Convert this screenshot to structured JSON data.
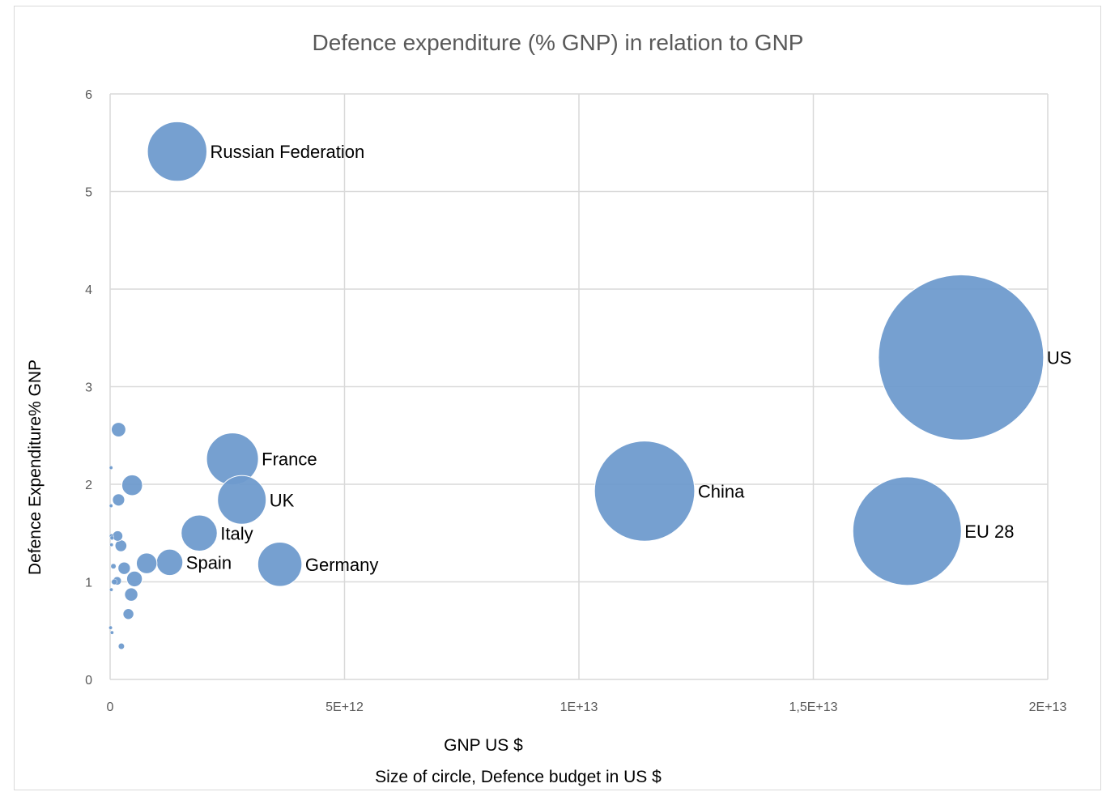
{
  "chart_data": {
    "type": "bubble",
    "title": "Defence expenditure (% GNP) in relation to GNP",
    "xlabel": "GNP US $",
    "xlabel2": "Size of circle, Defence budget in US $",
    "ylabel": "Defence Expenditure% GNP",
    "xlim": [
      0,
      20000000000000
    ],
    "ylim": [
      0,
      6
    ],
    "x_ticks": [
      0,
      5000000000000,
      10000000000000,
      15000000000000,
      20000000000000
    ],
    "x_tick_labels": [
      "0",
      "5E+12",
      "1E+13",
      "1,5E+13",
      "2E+13"
    ],
    "y_ticks": [
      0,
      1,
      2,
      3,
      4,
      5,
      6
    ],
    "y_tick_labels": [
      "0",
      "1",
      "2",
      "3",
      "4",
      "5",
      "6"
    ],
    "grid": true,
    "bubble_color": "#6f9bcd",
    "points": [
      {
        "label": "US",
        "x": 18150000000000,
        "y": 3.3,
        "size": 598000000000
      },
      {
        "label": "EU 28",
        "x": 17000000000000,
        "y": 1.52,
        "size": 258000000000
      },
      {
        "label": "China",
        "x": 11400000000000,
        "y": 1.93,
        "size": 220000000000
      },
      {
        "label": "Russian Federation",
        "x": 1430000000000,
        "y": 5.41,
        "size": 77400000000
      },
      {
        "label": "France",
        "x": 2610000000000,
        "y": 2.26,
        "size": 59000000000
      },
      {
        "label": "UK",
        "x": 2810000000000,
        "y": 1.84,
        "size": 51700000000
      },
      {
        "label": "Germany",
        "x": 3620000000000,
        "y": 1.18,
        "size": 42700000000
      },
      {
        "label": "Italy",
        "x": 1900000000000,
        "y": 1.5,
        "size": 28500000000
      },
      {
        "label": "Spain",
        "x": 1270000000000,
        "y": 1.2,
        "size": 15200000000
      },
      {
        "label": "",
        "x": 470000000000,
        "y": 1.99,
        "size": 9400000000
      },
      {
        "label": "",
        "x": 780000000000,
        "y": 1.19,
        "size": 9300000000
      },
      {
        "label": "",
        "x": 520000000000,
        "y": 1.03,
        "size": 5400000000
      },
      {
        "label": "",
        "x": 180000000000,
        "y": 2.56,
        "size": 4600000000
      },
      {
        "label": "",
        "x": 180000000000,
        "y": 1.84,
        "size": 3300000000
      },
      {
        "label": "",
        "x": 300000000000,
        "y": 1.14,
        "size": 3400000000
      },
      {
        "label": "",
        "x": 450000000000,
        "y": 0.87,
        "size": 3900000000
      },
      {
        "label": "",
        "x": 230000000000,
        "y": 1.37,
        "size": 3100000000
      },
      {
        "label": "",
        "x": 160000000000,
        "y": 1.47,
        "size": 2400000000
      },
      {
        "label": "",
        "x": 390000000000,
        "y": 0.67,
        "size": 2600000000
      },
      {
        "label": "",
        "x": 150000000000,
        "y": 1.01,
        "size": 1500000000
      },
      {
        "label": "",
        "x": 90000000000,
        "y": 1.0,
        "size": 700000000
      },
      {
        "label": "",
        "x": 70000000000,
        "y": 1.16,
        "size": 600000000
      },
      {
        "label": "",
        "x": 240000000000,
        "y": 0.34,
        "size": 800000000
      },
      {
        "label": "",
        "x": 30000000000,
        "y": 1.47,
        "size": 400000000
      },
      {
        "label": "",
        "x": 40000000000,
        "y": 1.45,
        "size": 350000000
      },
      {
        "label": "",
        "x": 20000000000,
        "y": 2.17,
        "size": 150000000
      },
      {
        "label": "",
        "x": 30000000000,
        "y": 1.38,
        "size": 200000000
      },
      {
        "label": "",
        "x": 20000000000,
        "y": 1.78,
        "size": 120000000
      },
      {
        "label": "",
        "x": 25000000000,
        "y": 0.92,
        "size": 120000000
      },
      {
        "label": "",
        "x": 40000000000,
        "y": 0.48,
        "size": 100000000
      },
      {
        "label": "",
        "x": 10000000000,
        "y": 0.53,
        "size": 60000000
      }
    ]
  }
}
